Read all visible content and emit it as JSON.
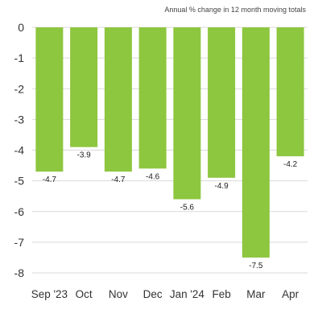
{
  "chart_data": {
    "type": "bar",
    "subtitle": "Annual % change in 12 month moving totals",
    "categories": [
      "Sep '23",
      "Oct",
      "Nov",
      "Dec",
      "Jan '24",
      "Feb",
      "Mar",
      "Apr"
    ],
    "values": [
      -4.7,
      -3.9,
      -4.7,
      -4.6,
      -5.6,
      -4.9,
      -7.5,
      -4.2
    ],
    "data_labels": [
      "-4.7",
      "-3.9",
      "-4.7",
      "-4.6",
      "-5.6",
      "-4.9",
      "-7.5",
      "-4.2"
    ],
    "yticks": [
      "0",
      "-1",
      "-2",
      "-3",
      "-4",
      "-5",
      "-6",
      "-7",
      "-8"
    ],
    "ylim": [
      -8,
      0
    ],
    "grid": true,
    "bar_color": "#8dc63f"
  }
}
